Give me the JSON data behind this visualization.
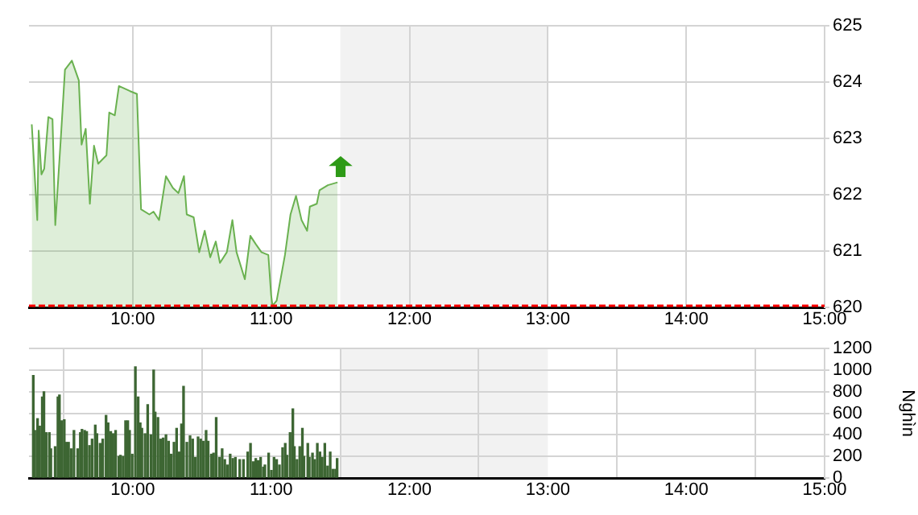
{
  "chart_data": [
    {
      "type": "area",
      "xlim": [
        9.25,
        15
      ],
      "xticks": [
        {
          "value": 10,
          "label": "10:00"
        },
        {
          "value": 11,
          "label": "11:00"
        },
        {
          "value": 12,
          "label": "12:00"
        },
        {
          "value": 13,
          "label": "13:00"
        },
        {
          "value": 14,
          "label": "14:00"
        },
        {
          "value": 15,
          "label": "15:00"
        }
      ],
      "ylim": [
        620,
        625
      ],
      "yticks": [
        620,
        621,
        622,
        623,
        624,
        625
      ],
      "grid": true,
      "legend": false,
      "ref_lines": [
        {
          "axis": "y",
          "value": 620,
          "color": "#ff0000",
          "line_style": "dashed"
        }
      ],
      "bands": [
        {
          "axis": "x",
          "from": 11.5,
          "to": 13,
          "color": "#f2f2f2"
        }
      ],
      "series": [
        {
          "color": "#6ab150",
          "x": [
            9.27,
            9.31,
            9.32,
            9.34,
            9.36,
            9.39,
            9.42,
            9.44,
            9.48,
            9.51,
            9.56,
            9.61,
            9.63,
            9.66,
            9.69,
            9.72,
            9.75,
            9.81,
            9.83,
            9.87,
            9.9,
            9.98,
            10.03,
            10.06,
            10.12,
            10.15,
            10.19,
            10.24,
            10.29,
            10.33,
            10.37,
            10.39,
            10.44,
            10.48,
            10.52,
            10.56,
            10.6,
            10.63,
            10.68,
            10.72,
            10.75,
            10.81,
            10.85,
            10.89,
            10.93,
            10.98,
            11,
            11.01,
            11.04,
            11.1,
            11.14,
            11.18,
            11.22,
            11.26,
            11.28,
            11.33,
            11.35,
            11.41,
            11.48
          ],
          "values": [
            623.25,
            621.55,
            623.14,
            622.36,
            622.46,
            623.38,
            623.34,
            621.46,
            623.0,
            624.22,
            624.38,
            624.03,
            622.89,
            623.17,
            621.84,
            622.87,
            622.55,
            622.7,
            623.46,
            623.41,
            623.93,
            623.84,
            623.79,
            621.74,
            621.65,
            621.7,
            621.55,
            622.33,
            622.12,
            622.03,
            622.33,
            621.65,
            621.6,
            620.98,
            621.36,
            620.89,
            621.17,
            620.79,
            620.98,
            621.55,
            620.98,
            620.5,
            621.27,
            621.12,
            620.98,
            620.93,
            620.22,
            620.03,
            620.12,
            620.93,
            621.65,
            621.98,
            621.55,
            621.36,
            621.79,
            621.84,
            622.08,
            622.17,
            622.22
          ]
        }
      ]
    },
    {
      "type": "bar",
      "ylabel": "Nghìn",
      "xlim": [
        9.25,
        15
      ],
      "xticks": [
        {
          "value": 10,
          "label": "10:00"
        },
        {
          "value": 11,
          "label": "11:00"
        },
        {
          "value": 12,
          "label": "12:00"
        },
        {
          "value": 13,
          "label": "13:00"
        },
        {
          "value": 14,
          "label": "14:00"
        },
        {
          "value": 15,
          "label": "15:00"
        }
      ],
      "ylim": [
        0,
        1200
      ],
      "yticks": [
        0,
        200,
        400,
        600,
        800,
        1000,
        1200
      ],
      "grid": true,
      "legend": false,
      "bands": [
        {
          "axis": "x",
          "from": 11.5,
          "to": 13,
          "color": "#f2f2f2"
        }
      ],
      "series": [
        {
          "color": "#3d6633",
          "x": [
            9.281,
            9.292,
            9.312,
            9.327,
            9.346,
            9.358,
            9.374,
            9.397,
            9.408,
            9.439,
            9.459,
            9.47,
            9.486,
            9.505,
            9.521,
            9.536,
            9.555,
            9.575,
            9.602,
            9.621,
            9.633,
            9.652,
            9.667,
            9.687,
            9.706,
            9.729,
            9.741,
            9.764,
            9.783,
            9.807,
            9.822,
            9.841,
            9.857,
            9.876,
            9.899,
            9.911,
            9.93,
            9.948,
            9.964,
            9.977,
            9.996,
            10.019,
            10.039,
            10.054,
            10.066,
            10.089,
            10.108,
            10.131,
            10.151,
            10.162,
            10.182,
            10.201,
            10.22,
            10.24,
            10.259,
            10.278,
            10.298,
            10.317,
            10.336,
            10.352,
            10.367,
            10.391,
            10.414,
            10.433,
            10.452,
            10.472,
            10.491,
            10.51,
            10.53,
            10.545,
            10.568,
            10.584,
            10.603,
            10.626,
            10.646,
            10.665,
            10.684,
            10.704,
            10.723,
            10.742,
            10.773,
            10.8,
            10.831,
            10.851,
            10.87,
            10.889,
            10.905,
            10.924,
            10.944,
            10.955,
            10.982,
            11.002,
            11.021,
            11.04,
            11.06,
            11.083,
            11.102,
            11.114,
            11.137,
            11.157,
            11.168,
            11.187,
            11.207,
            11.226,
            11.237,
            11.265,
            11.276,
            11.299,
            11.315,
            11.334,
            11.353,
            11.369,
            11.388,
            11.408,
            11.427,
            11.446,
            11.466,
            11.477
          ],
          "values": [
            950,
            440,
            550,
            480,
            750,
            800,
            420,
            420,
            270,
            290,
            750,
            770,
            530,
            540,
            330,
            330,
            270,
            440,
            270,
            420,
            450,
            440,
            430,
            300,
            360,
            490,
            410,
            320,
            360,
            580,
            510,
            430,
            410,
            440,
            200,
            210,
            200,
            530,
            530,
            440,
            220,
            1030,
            750,
            510,
            460,
            410,
            680,
            400,
            1000,
            610,
            560,
            360,
            370,
            400,
            340,
            220,
            330,
            460,
            240,
            500,
            850,
            330,
            390,
            360,
            190,
            380,
            360,
            340,
            440,
            340,
            220,
            230,
            560,
            190,
            270,
            170,
            120,
            220,
            180,
            190,
            170,
            170,
            240,
            320,
            150,
            180,
            160,
            190,
            100,
            120,
            230,
            70,
            190,
            170,
            120,
            280,
            320,
            210,
            420,
            640,
            290,
            170,
            290,
            460,
            200,
            320,
            190,
            230,
            170,
            320,
            240,
            190,
            320,
            110,
            240,
            80,
            80,
            180
          ]
        }
      ]
    }
  ]
}
